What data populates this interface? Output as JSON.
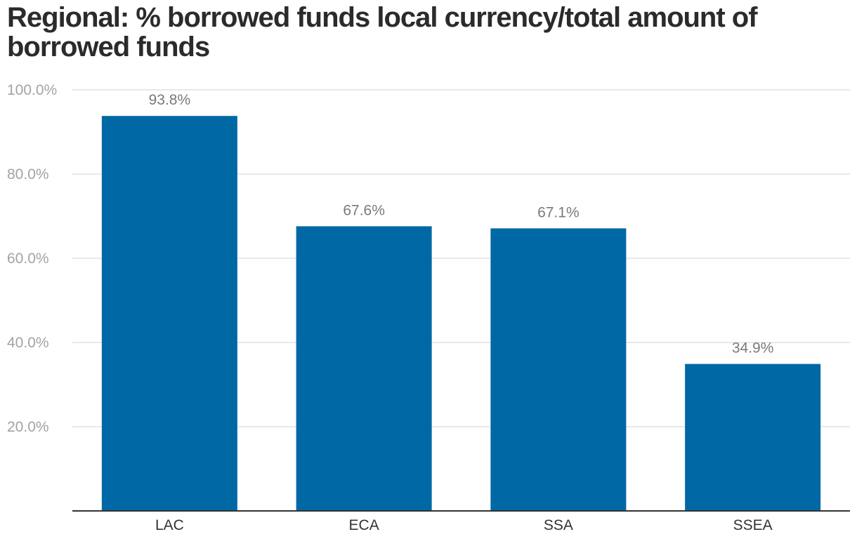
{
  "chart_data": {
    "type": "bar",
    "title": "Regional: % borrowed funds local currency/total amount of borrowed funds",
    "categories": [
      "LAC",
      "ECA",
      "SSA",
      "SSEA"
    ],
    "values": [
      93.8,
      67.6,
      67.1,
      34.9
    ],
    "data_labels": [
      "93.8%",
      "67.6%",
      "67.1%",
      "34.9%"
    ],
    "y_ticks": [
      20,
      40,
      60,
      80,
      100
    ],
    "y_tick_labels": [
      "20.0%",
      "40.0%",
      "60.0%",
      "80.0%",
      "100.0%"
    ],
    "ylim": [
      0,
      100
    ],
    "xlabel": "",
    "ylabel": "",
    "grid": true,
    "legend": "none",
    "bar_color": "#0068a5",
    "grid_color": "#e0e0e0",
    "axis_color": "#333333"
  }
}
